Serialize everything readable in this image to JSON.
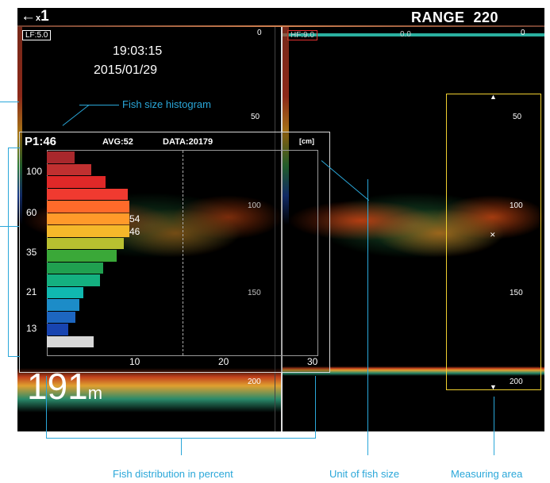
{
  "header": {
    "mode_symbol": "←",
    "mode_sub": "x",
    "mode_value": "1",
    "range_label": "RANGE",
    "range_value": "220"
  },
  "left_pane": {
    "freq_tag": "LF:5.0",
    "time": "19:03:15",
    "date": "2015/01/29",
    "scale": [
      "0",
      "50",
      "100",
      "150",
      "200"
    ]
  },
  "right_pane": {
    "freq_tag": "HF:9.0",
    "zero_label": "0.0",
    "scale": [
      "0",
      "50",
      "100",
      "150",
      "200"
    ]
  },
  "histogram": {
    "p_label": "P1:46",
    "avg_label": "AVG:52",
    "data_label": "DATA:20179",
    "unit": "[cm]",
    "y_labels": [
      "100",
      "60",
      "35",
      "21",
      "13"
    ],
    "x_labels": [
      "10",
      "20",
      "30"
    ],
    "value_labels": [
      "54",
      "46"
    ],
    "bars": [
      {
        "percent": 3.1,
        "color": "#a8282c"
      },
      {
        "percent": 4.9,
        "color": "#c03030"
      },
      {
        "percent": 6.5,
        "color": "#e02828"
      },
      {
        "percent": 9.0,
        "color": "#f03a30"
      },
      {
        "percent": 9.2,
        "color": "#ff6a2a"
      },
      {
        "percent": 9.2,
        "color": "#ff9a2a"
      },
      {
        "percent": 9.2,
        "color": "#f5b82a"
      },
      {
        "percent": 8.6,
        "color": "#b8c030"
      },
      {
        "percent": 7.8,
        "color": "#3aa838"
      },
      {
        "percent": 6.3,
        "color": "#20a050"
      },
      {
        "percent": 5.9,
        "color": "#14b080"
      },
      {
        "percent": 4.1,
        "color": "#10b8b0"
      },
      {
        "percent": 3.6,
        "color": "#1c8cc8"
      },
      {
        "percent": 3.2,
        "color": "#1d66c0"
      },
      {
        "percent": 2.4,
        "color": "#1844b0"
      },
      {
        "percent": 5.2,
        "color": "#d8d8d8"
      }
    ]
  },
  "depth": {
    "value": "191",
    "unit": "m"
  },
  "callouts": {
    "histogram": "Fish size histogram",
    "distribution": "Fish distribution in percent",
    "unit": "Unit of fish size",
    "measuring": "Measuring area"
  },
  "colors": {
    "callout": "#2aa7d9",
    "measure_box": "#f0d030",
    "overlay_border": "#d8d8d8"
  }
}
